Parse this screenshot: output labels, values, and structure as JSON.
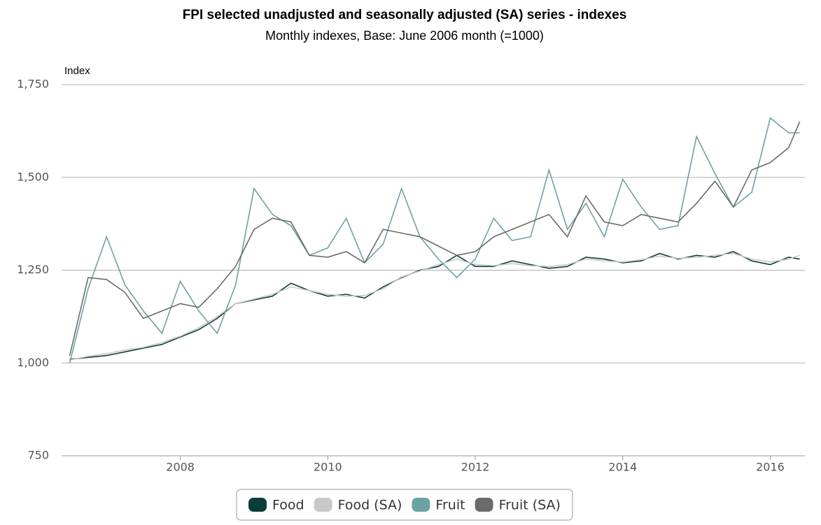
{
  "chart_data": {
    "type": "line",
    "title": "FPI selected unadjusted and seasonally adjusted (SA) series - indexes",
    "subtitle": "Monthly indexes, Base: June 2006 month (=1000)",
    "y_label": "Index",
    "x": [
      2006.5,
      2006.75,
      2007,
      2007.25,
      2007.5,
      2007.75,
      2008,
      2008.25,
      2008.5,
      2008.75,
      2009,
      2009.25,
      2009.5,
      2009.75,
      2010,
      2010.25,
      2010.5,
      2010.75,
      2011,
      2011.25,
      2011.5,
      2011.75,
      2012,
      2012.25,
      2012.5,
      2012.75,
      2013,
      2013.25,
      2013.5,
      2013.75,
      2014,
      2014.25,
      2014.5,
      2014.75,
      2015,
      2015.25,
      2015.5,
      2015.75,
      2016,
      2016.25,
      2016.4
    ],
    "series": [
      {
        "name": "Food",
        "color": "#0d3d3a",
        "values": [
          1010,
          1015,
          1020,
          1030,
          1040,
          1050,
          1070,
          1090,
          1120,
          1160,
          1170,
          1180,
          1215,
          1195,
          1180,
          1185,
          1175,
          1205,
          1230,
          1250,
          1260,
          1290,
          1260,
          1260,
          1275,
          1265,
          1255,
          1260,
          1285,
          1280,
          1270,
          1275,
          1295,
          1280,
          1290,
          1285,
          1300,
          1275,
          1265,
          1285,
          1280
        ]
      },
      {
        "name": "Food (SA)",
        "color": "#c8c8c8",
        "values": [
          1008,
          1018,
          1025,
          1035,
          1042,
          1055,
          1072,
          1095,
          1125,
          1160,
          1172,
          1185,
          1205,
          1195,
          1185,
          1180,
          1182,
          1200,
          1232,
          1248,
          1265,
          1280,
          1265,
          1262,
          1268,
          1262,
          1260,
          1265,
          1280,
          1275,
          1272,
          1278,
          1288,
          1282,
          1285,
          1290,
          1295,
          1280,
          1272,
          1280,
          1290
        ]
      },
      {
        "name": "Fruit",
        "color": "#6aa3a1",
        "values": [
          1000,
          1200,
          1340,
          1210,
          1140,
          1080,
          1220,
          1140,
          1080,
          1210,
          1470,
          1400,
          1370,
          1290,
          1310,
          1390,
          1270,
          1320,
          1470,
          1340,
          1280,
          1230,
          1280,
          1390,
          1330,
          1340,
          1520,
          1360,
          1430,
          1340,
          1495,
          1420,
          1360,
          1370,
          1610,
          1510,
          1420,
          1460,
          1660,
          1620,
          1620
        ]
      },
      {
        "name": "Fruit (SA)",
        "color": "#6b6b6b",
        "values": [
          1020,
          1230,
          1225,
          1190,
          1120,
          1140,
          1160,
          1150,
          1200,
          1260,
          1360,
          1390,
          1380,
          1290,
          1285,
          1300,
          1270,
          1360,
          1350,
          1340,
          1315,
          1290,
          1300,
          1340,
          1360,
          1380,
          1400,
          1340,
          1450,
          1380,
          1370,
          1400,
          1390,
          1380,
          1430,
          1490,
          1420,
          1520,
          1540,
          1580,
          1650
        ]
      }
    ],
    "xlim": [
      2006.39,
      2016.47
    ],
    "xticks": [
      2008,
      2010,
      2012,
      2014,
      2016
    ],
    "ylim": [
      750,
      1750
    ],
    "yticks": [
      750,
      {
        "value": 1000,
        "label": "1,000"
      },
      {
        "value": 1250,
        "label": "1,250"
      },
      {
        "value": 1500,
        "label": "1,500"
      },
      {
        "value": 1750,
        "label": "1,750"
      }
    ],
    "grid": true,
    "legend": "bottom"
  }
}
